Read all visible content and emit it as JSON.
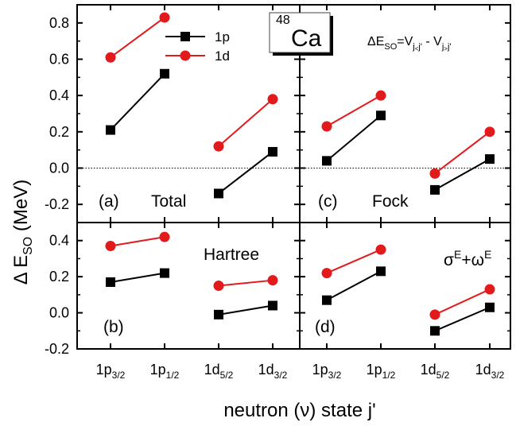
{
  "chart_data": {
    "type": "line",
    "nucleus": {
      "mass": "48",
      "element": "Ca"
    },
    "formula": {
      "lead": "ΔE",
      "sub1": "SO",
      "mid": "=V",
      "sub2": "j",
      "sub2b": "<",
      "sub2c": "j'",
      "dash": " - V",
      "sub3": "j",
      "sub3b": ">",
      "sub3c": "j'"
    },
    "ylabel": {
      "main": "Δ E",
      "sub": "SO",
      "unit": " (MeV)"
    },
    "xlabel": "neutron (ν) state j'",
    "x_categories": [
      {
        "main": "1p",
        "sub": "3/2"
      },
      {
        "main": "1p",
        "sub": "1/2"
      },
      {
        "main": "1d",
        "sub": "5/2"
      },
      {
        "main": "1d",
        "sub": "3/2"
      }
    ],
    "legend": [
      {
        "name": "1p",
        "color": "#000000",
        "marker": "square"
      },
      {
        "name": "1d",
        "color": "#e31a1c",
        "marker": "circle"
      }
    ],
    "panels": [
      {
        "id": "a",
        "label": "(a)",
        "title": "Total",
        "ylim": [
          -0.3,
          0.9
        ],
        "yticks": [
          "-0.2",
          "0.0",
          "0.2",
          "0.4",
          "0.6",
          "0.8"
        ],
        "ytick_values": [
          -0.2,
          0.0,
          0.2,
          0.4,
          0.6,
          0.8
        ],
        "zero_line": true,
        "series": [
          {
            "name": "1p",
            "segments": [
              {
                "x": [
                  0,
                  1
                ],
                "y": [
                  0.21,
                  0.52
                ]
              },
              {
                "x": [
                  2,
                  3
                ],
                "y": [
                  -0.14,
                  0.09
                ]
              }
            ]
          },
          {
            "name": "1d",
            "segments": [
              {
                "x": [
                  0,
                  1
                ],
                "y": [
                  0.61,
                  0.83
                ]
              },
              {
                "x": [
                  2,
                  3
                ],
                "y": [
                  0.12,
                  0.38
                ]
              }
            ]
          }
        ]
      },
      {
        "id": "c",
        "label": "(c)",
        "title": "Fock",
        "ylim": [
          -0.3,
          0.9
        ],
        "yticks": [],
        "ytick_values": [
          -0.2,
          0.0,
          0.2,
          0.4,
          0.6,
          0.8
        ],
        "zero_line": true,
        "series": [
          {
            "name": "1p",
            "segments": [
              {
                "x": [
                  0,
                  1
                ],
                "y": [
                  0.04,
                  0.29
                ]
              },
              {
                "x": [
                  2,
                  3
                ],
                "y": [
                  -0.12,
                  0.05
                ]
              }
            ]
          },
          {
            "name": "1d",
            "segments": [
              {
                "x": [
                  0,
                  1
                ],
                "y": [
                  0.23,
                  0.4
                ]
              },
              {
                "x": [
                  2,
                  3
                ],
                "y": [
                  -0.03,
                  0.2
                ]
              }
            ]
          }
        ]
      },
      {
        "id": "b",
        "label": "(b)",
        "title": "Hartree",
        "ylim": [
          -0.2,
          0.5
        ],
        "yticks": [
          "-0.2",
          "0.0",
          "0.2",
          "0.4"
        ],
        "ytick_values": [
          -0.2,
          0.0,
          0.2,
          0.4
        ],
        "zero_line": false,
        "series": [
          {
            "name": "1p",
            "segments": [
              {
                "x": [
                  0,
                  1
                ],
                "y": [
                  0.17,
                  0.22
                ]
              },
              {
                "x": [
                  2,
                  3
                ],
                "y": [
                  -0.01,
                  0.04
                ]
              }
            ]
          },
          {
            "name": "1d",
            "segments": [
              {
                "x": [
                  0,
                  1
                ],
                "y": [
                  0.37,
                  0.42
                ]
              },
              {
                "x": [
                  2,
                  3
                ],
                "y": [
                  0.15,
                  0.18
                ]
              }
            ]
          }
        ]
      },
      {
        "id": "d",
        "label": "(d)",
        "title": "σE+ωE",
        "title_parts": {
          "a": "σ",
          "asup": "E",
          "plus": "+",
          "b": "ω",
          "bsup": "E"
        },
        "ylim": [
          -0.2,
          0.5
        ],
        "yticks": [],
        "ytick_values": [
          -0.2,
          0.0,
          0.2,
          0.4
        ],
        "zero_line": false,
        "series": [
          {
            "name": "1p",
            "segments": [
              {
                "x": [
                  0,
                  1
                ],
                "y": [
                  0.07,
                  0.23
                ]
              },
              {
                "x": [
                  2,
                  3
                ],
                "y": [
                  -0.1,
                  0.03
                ]
              }
            ]
          },
          {
            "name": "1d",
            "segments": [
              {
                "x": [
                  0,
                  1
                ],
                "y": [
                  0.22,
                  0.35
                ]
              },
              {
                "x": [
                  2,
                  3
                ],
                "y": [
                  -0.01,
                  0.13
                ]
              }
            ]
          }
        ]
      }
    ]
  }
}
